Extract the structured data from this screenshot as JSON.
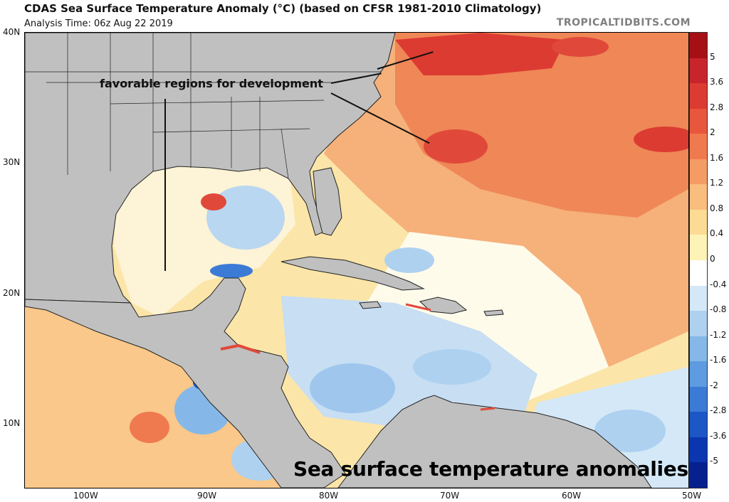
{
  "header": {
    "title": "CDAS Sea Surface Temperature Anomaly (°C) (based on CFSR 1981-2010 Climatology)",
    "subtitle": "Analysis Time: 06z Aug 22 2019",
    "credit": "TROPICALTIDBITS.COM"
  },
  "map": {
    "latitude_labels": [
      "40N",
      "30N",
      "20N",
      "10N"
    ],
    "longitude_labels": [
      "100W",
      "90W",
      "80W",
      "70W",
      "60W",
      "50W"
    ],
    "annotation": "favorable regions for development",
    "caption": "Sea surface temperature anomalies",
    "land_color": "#c0c0c0",
    "coastline_color": "#222222"
  },
  "colorbar": {
    "labels": [
      "5",
      "3.6",
      "2.8",
      "2",
      "1.6",
      "1.2",
      "0.8",
      "0.4",
      "0",
      "-0.4",
      "-0.8",
      "-1.2",
      "-1.6",
      "-2",
      "-2.8",
      "-3.6",
      "-5"
    ],
    "colors": [
      "#a50f15",
      "#c8242c",
      "#dc3b32",
      "#e8573d",
      "#f07a4f",
      "#f59c65",
      "#f9bd7e",
      "#fcdc95",
      "#fdf3b6",
      "#ffffff",
      "#d4e8f7",
      "#aed1f0",
      "#85b8e8",
      "#5e9be0",
      "#3b7bd6",
      "#1d57c6",
      "#0c36b0",
      "#06208e"
    ]
  }
}
